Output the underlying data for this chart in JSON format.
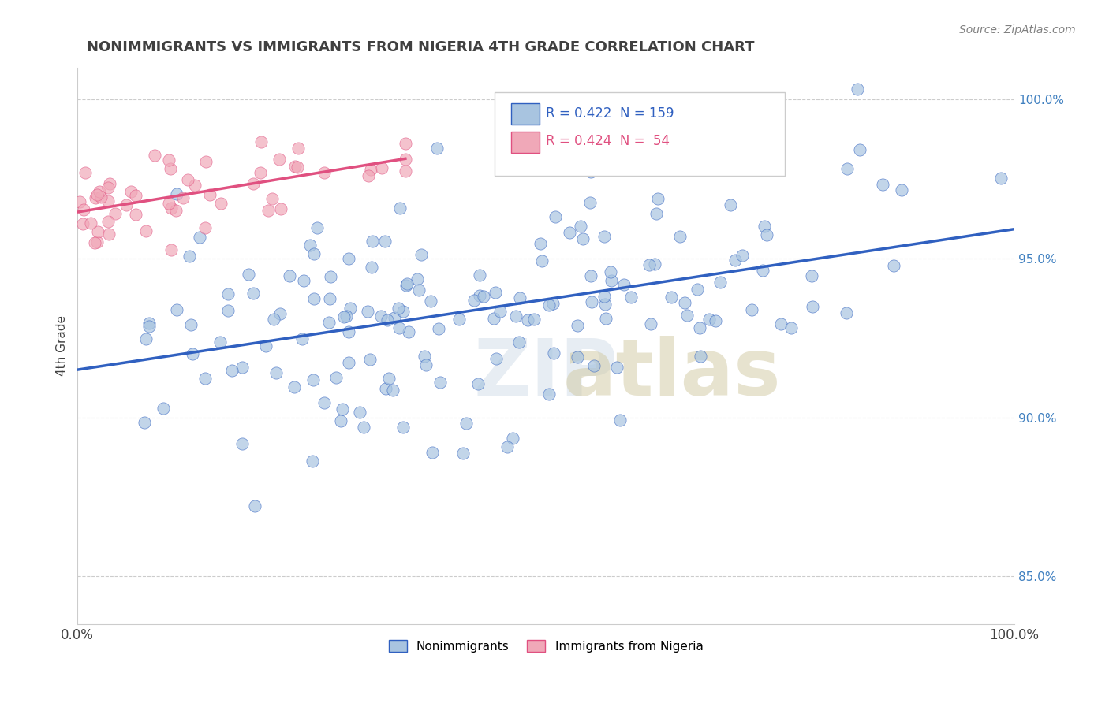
{
  "title": "NONIMMIGRANTS VS IMMIGRANTS FROM NIGERIA 4TH GRADE CORRELATION CHART",
  "source_text": "Source: ZipAtlas.com",
  "ylabel": "4th Grade",
  "scatter_color_blue": "#a8c4e0",
  "scatter_color_pink": "#f0a8b8",
  "line_color_blue": "#3060c0",
  "line_color_pink": "#e05080",
  "watermark_zip_color": "#d0dce8",
  "watermark_atlas_color": "#d0c8a0",
  "background_color": "#ffffff",
  "grid_color": "#cccccc",
  "title_color": "#404040",
  "right_tick_color": "#4080c0",
  "blue_R": 0.422,
  "blue_N": 159,
  "pink_R": 0.424,
  "pink_N": 54
}
